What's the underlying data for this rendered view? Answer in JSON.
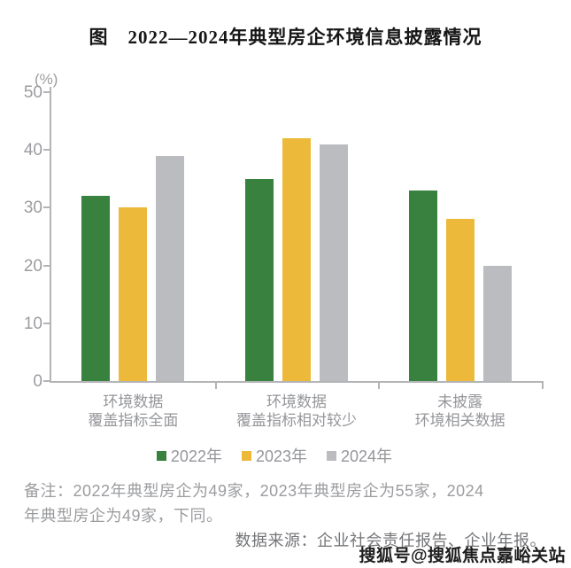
{
  "title": "图　2022—2024年典型房企环境信息披露情况",
  "chart_data": {
    "type": "bar",
    "title": "图　2022—2024年典型房企环境信息披露情况",
    "unit_label": "(%)",
    "xlabel": "",
    "ylabel": "(%)",
    "ylim": [
      0,
      50
    ],
    "yticks": [
      0,
      10,
      20,
      30,
      40,
      50
    ],
    "grid": false,
    "legend_position": "bottom",
    "categories": [
      [
        "环境数据",
        "覆盖指标全面"
      ],
      [
        "环境数据",
        "覆盖指标相对较少"
      ],
      [
        "未披露",
        "环境相关数据"
      ]
    ],
    "series": [
      {
        "name": "2022年",
        "color": "#38813F",
        "values": [
          32,
          35,
          33
        ]
      },
      {
        "name": "2023年",
        "color": "#EDB93B",
        "values": [
          30,
          42,
          28
        ]
      },
      {
        "name": "2024年",
        "color": "#BBBCC0",
        "values": [
          39,
          41,
          20
        ]
      }
    ]
  },
  "notes": {
    "line1": "备注：2022年典型房企为49家，2023年典型房企为55家，2024",
    "line2": "年典型房企为49家，下同。"
  },
  "source": "数据来源：企业社会责任报告、企业年报。",
  "watermark": "搜狐号@搜狐焦点嘉峪关站",
  "colors": {
    "bar_2022": "#38813F",
    "bar_2023": "#EDB93B",
    "bar_2024": "#BBBCC0",
    "axis": "#b3b4b6",
    "muted_text": "#95969a",
    "title_text": "#161616"
  }
}
